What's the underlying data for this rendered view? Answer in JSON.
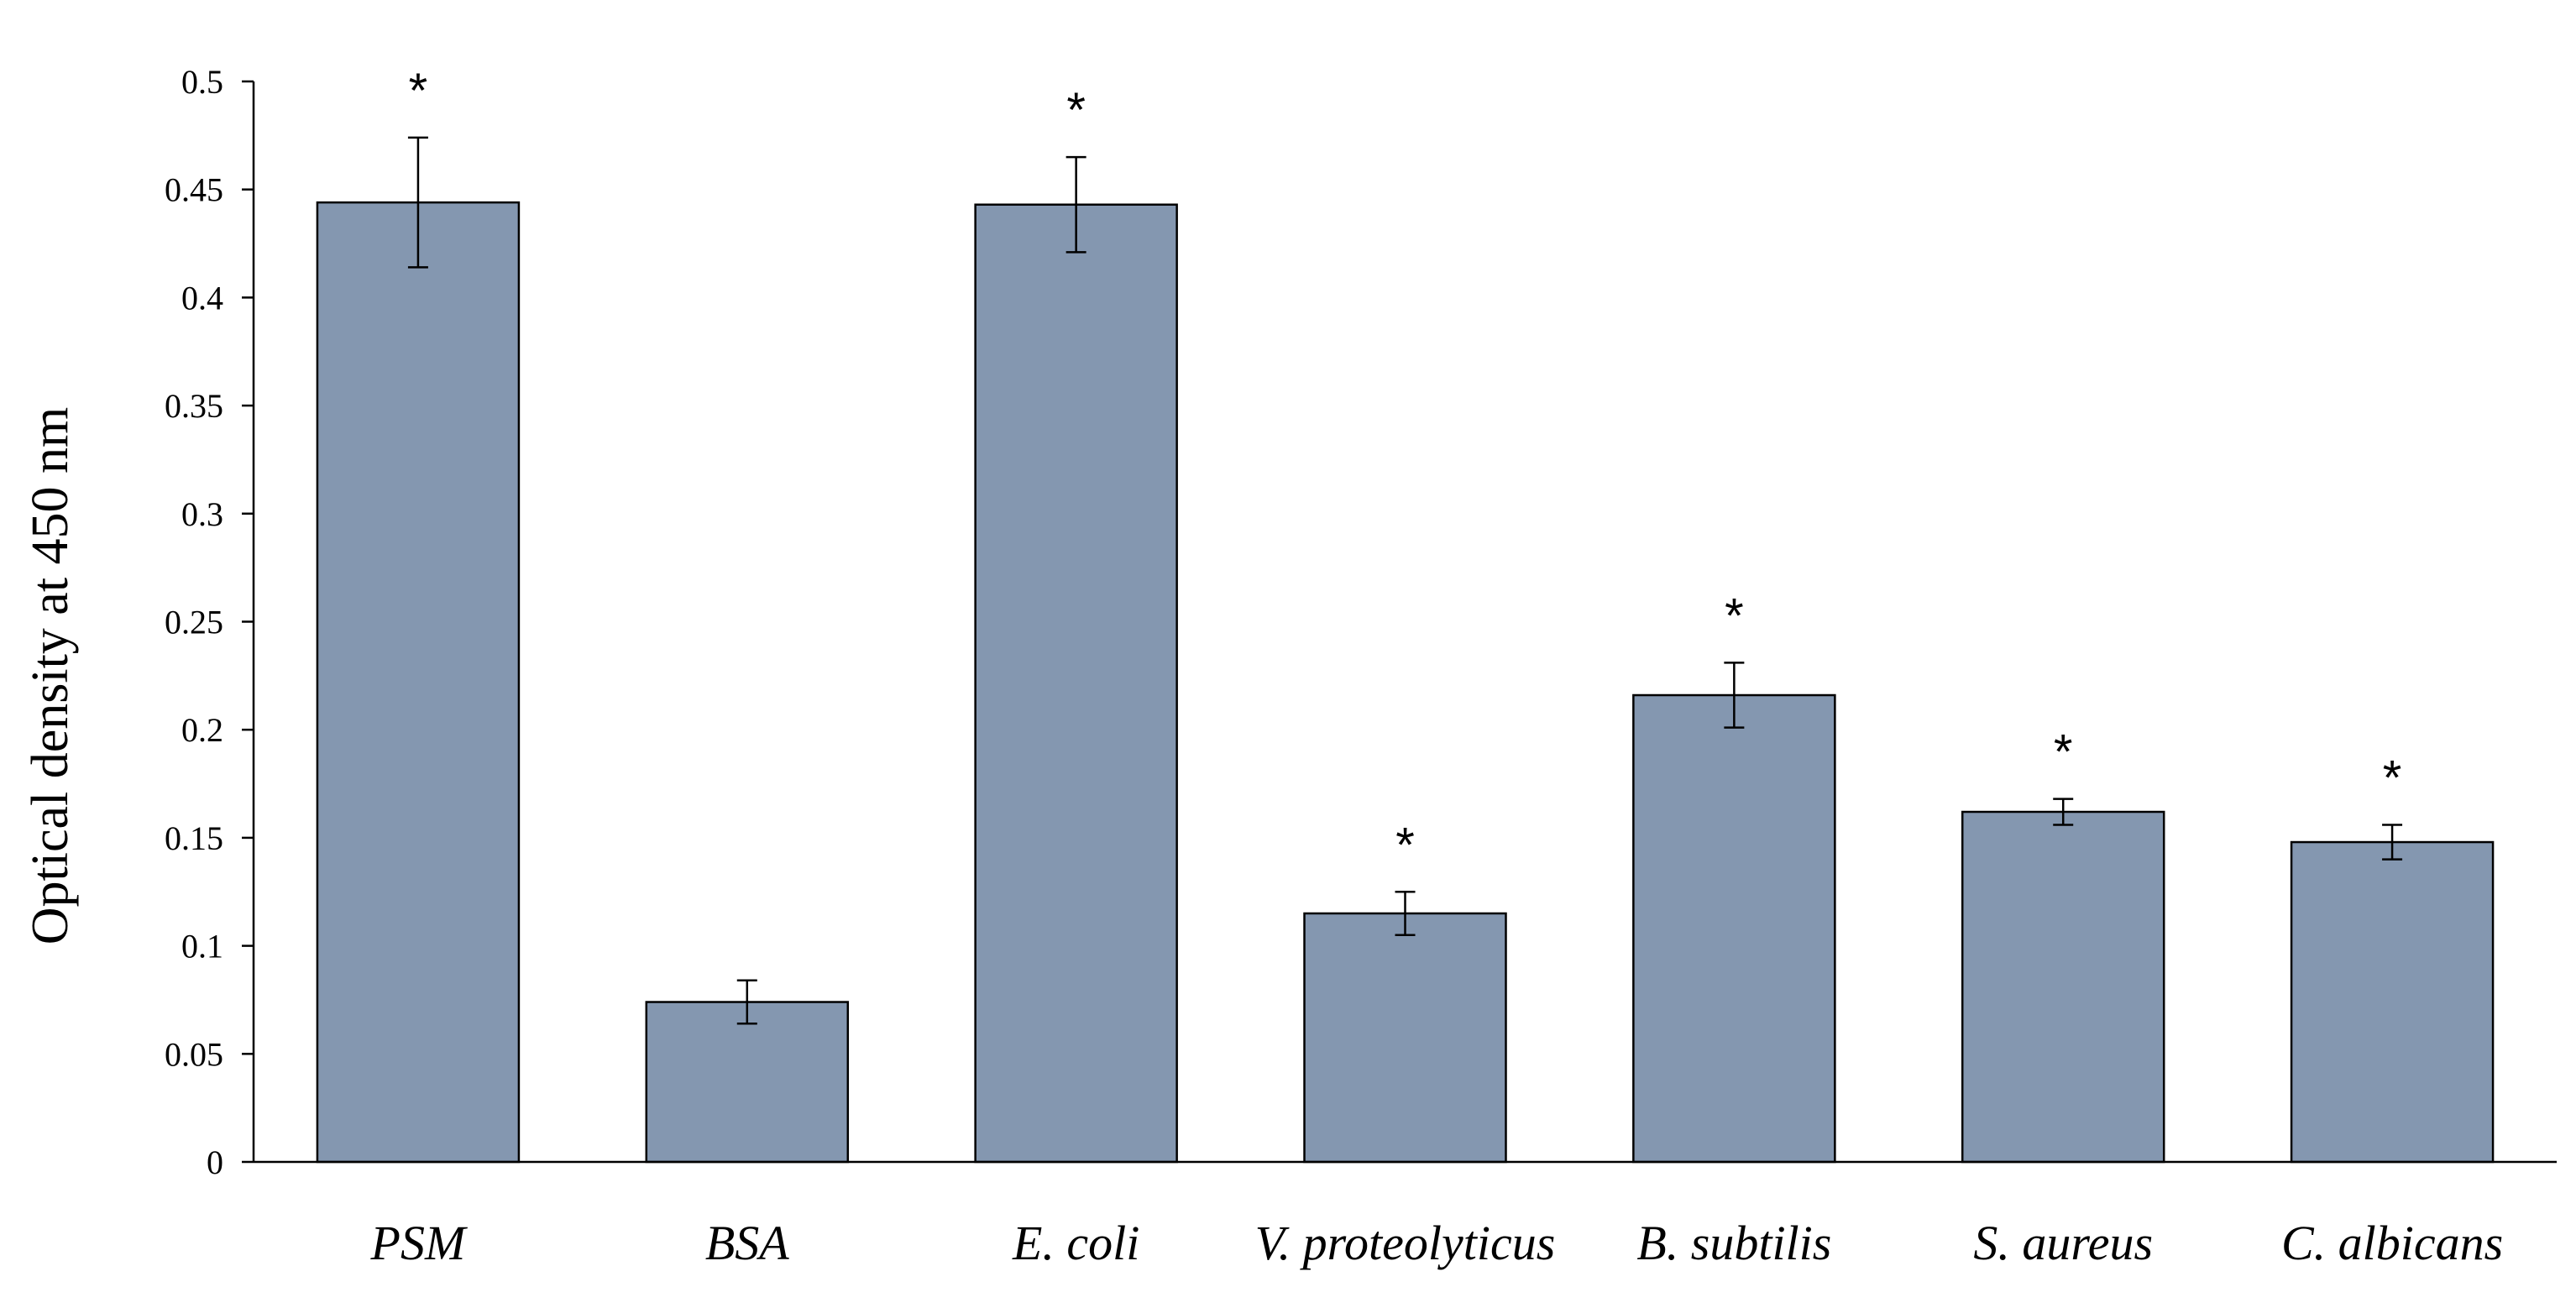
{
  "chart_data": {
    "type": "bar",
    "title": "",
    "xlabel": "",
    "ylabel": "Optical density at 450 nm",
    "ylim": [
      0,
      0.5
    ],
    "yticks": [
      "0",
      "0.05",
      "0.1",
      "0.15",
      "0.2",
      "0.25",
      "0.3",
      "0.35",
      "0.4",
      "0.45",
      "0.5"
    ],
    "categories": [
      "PSM",
      "BSA",
      "E. coli",
      "V. proteolyticus",
      "B. subtilis",
      "S. aureus",
      "C. albicans"
    ],
    "values": [
      0.444,
      0.074,
      0.443,
      0.115,
      0.216,
      0.162,
      0.148
    ],
    "errors": [
      0.03,
      0.01,
      0.022,
      0.01,
      0.015,
      0.006,
      0.008
    ],
    "significance": [
      "*",
      "",
      "*",
      "*",
      "*",
      "*",
      "*"
    ],
    "bar_color": "#8497b0",
    "grid": false,
    "legend": "none"
  }
}
